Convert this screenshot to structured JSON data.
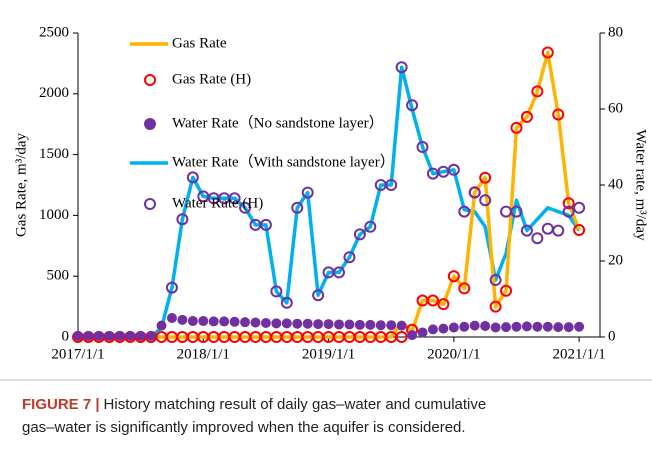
{
  "chart_data": {
    "type": "line",
    "y_label": "Gas Rate, m³/day",
    "y2_label": "Water rate, m³/day",
    "x": [
      "2017/1/1",
      "2017/2/1",
      "2017/3/1",
      "2017/4/1",
      "2017/5/1",
      "2017/6/1",
      "2017/7/1",
      "2017/8/1",
      "2017/9/1",
      "2017/10/1",
      "2017/11/1",
      "2017/12/1",
      "2018/1/1",
      "2018/2/1",
      "2018/3/1",
      "2018/4/1",
      "2018/5/1",
      "2018/6/1",
      "2018/7/1",
      "2018/8/1",
      "2018/9/1",
      "2018/10/1",
      "2018/11/1",
      "2018/12/1",
      "2019/1/1",
      "2019/2/1",
      "2019/3/1",
      "2019/4/1",
      "2019/5/1",
      "2019/6/1",
      "2019/7/1",
      "2019/8/1",
      "2019/9/1",
      "2019/10/1",
      "2019/11/1",
      "2019/12/1",
      "2020/1/1",
      "2020/2/1",
      "2020/3/1",
      "2020/4/1",
      "2020/5/1",
      "2020/6/1",
      "2020/7/1",
      "2020/8/1",
      "2020/9/1",
      "2020/10/1",
      "2020/11/1",
      "2020/12/1",
      "2021/1/1"
    ],
    "xlim": [
      "2017/1/1",
      "2021/3/1"
    ],
    "xticks": [
      "2017/1/1",
      "2018/1/1",
      "2019/1/1",
      "2020/1/1",
      "2021/1/1"
    ],
    "ylim": [
      0,
      2500
    ],
    "yticks": [
      0,
      500,
      1000,
      1500,
      2000,
      2500
    ],
    "y2lim": [
      0,
      80
    ],
    "y2ticks": [
      0,
      20,
      40,
      60,
      80
    ],
    "series": [
      {
        "name": "Gas Rate",
        "color": "#FFB400",
        "style": "line",
        "values": [
          0,
          0,
          0,
          0,
          0,
          0,
          0,
          0,
          0,
          0,
          0,
          0,
          0,
          0,
          0,
          0,
          0,
          0,
          0,
          0,
          0,
          0,
          0,
          0,
          0,
          0,
          0,
          0,
          0,
          0,
          0,
          120,
          50,
          300,
          300,
          270,
          500,
          400,
          1190,
          1310,
          250,
          380,
          1720,
          1810,
          2020,
          2340,
          1830,
          1100,
          880
        ]
      },
      {
        "name": "Gas Rate (H)",
        "color": "#FF0000",
        "style": "open",
        "values": [
          0,
          0,
          0,
          0,
          0,
          0,
          0,
          0,
          0,
          0,
          0,
          0,
          0,
          0,
          0,
          0,
          0,
          0,
          0,
          0,
          0,
          0,
          0,
          0,
          0,
          0,
          0,
          0,
          0,
          0,
          0,
          0,
          60,
          300,
          300,
          270,
          500,
          400,
          1190,
          1310,
          250,
          380,
          1720,
          1810,
          2020,
          2340,
          1830,
          1100,
          880
        ]
      },
      {
        "name": "Water Rate（No sandstone layer）",
        "color": "#7030A0",
        "style": "filled",
        "axis": "y2",
        "values": [
          0.3,
          0.3,
          0.3,
          0.3,
          0.3,
          0.3,
          0.3,
          0.3,
          3,
          5,
          4.5,
          4.2,
          4.2,
          4.1,
          4.1,
          4,
          3.9,
          3.8,
          3.7,
          3.6,
          3.6,
          3.5,
          3.5,
          3.4,
          3.4,
          3.3,
          3.3,
          3.2,
          3.2,
          3.1,
          3.1,
          3,
          0.5,
          1.2,
          2,
          2.2,
          2.5,
          2.7,
          3,
          2.9,
          2.5,
          2.6,
          2.7,
          2.8,
          2.7,
          2.7,
          2.6,
          2.6,
          2.7
        ]
      },
      {
        "name": "Water Rate（With sandstone layer）",
        "color": "#00B0F0",
        "style": "line",
        "axis": "y2",
        "values": [
          0,
          0,
          0,
          0,
          0,
          0,
          0,
          0,
          2.5,
          13,
          31,
          42,
          37,
          36.5,
          36.5,
          36.5,
          34,
          29.5,
          29.5,
          12,
          9,
          34,
          38,
          11,
          17,
          17,
          21,
          27,
          29,
          40,
          40,
          71,
          60,
          50,
          43,
          43.5,
          44,
          33.5,
          33,
          29,
          15,
          22,
          36,
          28,
          31,
          34,
          33,
          32,
          28
        ]
      },
      {
        "name": "Water Rate (H)",
        "color": "#7030A0",
        "style": "open",
        "axis": "y2",
        "values": [
          null,
          null,
          null,
          null,
          null,
          null,
          null,
          null,
          null,
          13,
          31,
          42,
          37,
          36.5,
          36.5,
          36.5,
          34,
          29.5,
          29.5,
          12,
          9,
          34,
          38,
          11,
          17,
          17,
          21,
          27,
          29,
          40,
          40,
          71,
          61,
          50,
          43,
          43.5,
          44,
          33,
          38,
          36,
          15,
          33,
          33,
          28,
          26,
          28.5,
          28,
          33,
          34
        ]
      }
    ]
  },
  "caption": {
    "label": "FIGURE 7 |",
    "lines": [
      "History matching result of daily gas–water and cumulative",
      "gas–water is significantly improved when the aquifer is considered."
    ]
  }
}
